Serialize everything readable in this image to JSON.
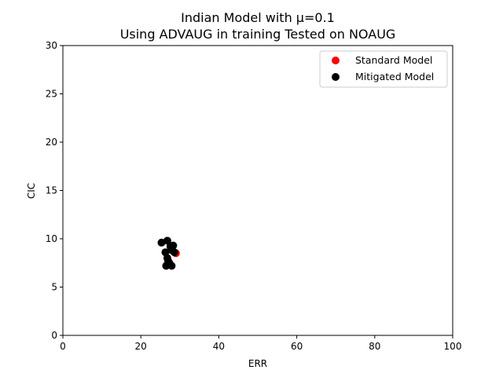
{
  "chart_data": {
    "type": "scatter",
    "title_line1": "Indian Model with μ=0.1",
    "title_line2": "Using ADVAUG in training Tested on NOAUG",
    "xlabel": "ERR",
    "ylabel": "CIC",
    "xlim": [
      0,
      100
    ],
    "ylim": [
      0,
      30
    ],
    "xticks": [
      "0",
      "20",
      "40",
      "60",
      "80",
      "100"
    ],
    "yticks": [
      "0",
      "5",
      "10",
      "15",
      "20",
      "25",
      "30"
    ],
    "grid": false,
    "legend_position": "top-right",
    "series": [
      {
        "name": "Standard Model",
        "color": "#ff0000",
        "points": [
          {
            "x": 29.0,
            "y": 8.5
          }
        ]
      },
      {
        "name": "Mitigated Model",
        "color": "#000000",
        "points": [
          {
            "x": 25.3,
            "y": 9.6
          },
          {
            "x": 26.8,
            "y": 9.8
          },
          {
            "x": 27.6,
            "y": 9.2
          },
          {
            "x": 28.3,
            "y": 9.3
          },
          {
            "x": 28.0,
            "y": 8.8
          },
          {
            "x": 28.6,
            "y": 8.6
          },
          {
            "x": 26.3,
            "y": 8.6
          },
          {
            "x": 26.8,
            "y": 8.0
          },
          {
            "x": 27.0,
            "y": 7.7
          },
          {
            "x": 27.3,
            "y": 7.5
          },
          {
            "x": 26.5,
            "y": 7.2
          },
          {
            "x": 27.9,
            "y": 7.2
          }
        ]
      }
    ]
  }
}
